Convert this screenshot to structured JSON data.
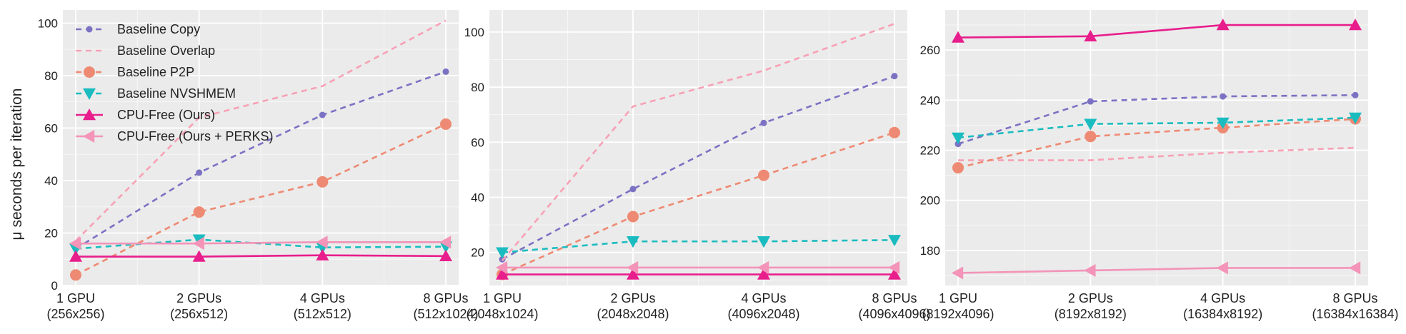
{
  "ylabel": "μ seconds per iteration",
  "series_styles": [
    {
      "name": "Baseline Copy",
      "color": "#7B72C4",
      "dash": "8,6",
      "marker": "dot"
    },
    {
      "name": "Baseline Overlap",
      "color": "#F7A1B5",
      "dash": "8,6",
      "marker": "none"
    },
    {
      "name": "Baseline P2P",
      "color": "#EE8A73",
      "dash": "8,6",
      "marker": "circle"
    },
    {
      "name": "Baseline NVSHMEM",
      "color": "#1BBCC0",
      "dash": "8,6",
      "marker": "tri-down"
    },
    {
      "name": "CPU-Free (Ours)",
      "color": "#E81E8C",
      "dash": "",
      "marker": "tri-up"
    },
    {
      "name": "CPU-Free (Ours + PERKS)",
      "color": "#F394B8",
      "dash": "",
      "marker": "tri-left"
    }
  ],
  "chart_data": [
    {
      "type": "line",
      "categories": [
        "1 GPU\n(256x256)",
        "2 GPUs\n(256x512)",
        "4 GPUs\n(512x512)",
        "8 GPUs\n(512x1024)"
      ],
      "ylim": [
        0,
        105
      ],
      "yticks": [
        0,
        20,
        40,
        60,
        80,
        100
      ],
      "legend": "upper-left",
      "grid": true,
      "series": [
        {
          "name": "Baseline Copy",
          "values": [
            14,
            43,
            65,
            81.5
          ]
        },
        {
          "name": "Baseline Overlap",
          "values": [
            17,
            64,
            76,
            101
          ]
        },
        {
          "name": "Baseline P2P",
          "values": [
            4,
            28,
            39.5,
            61.5
          ]
        },
        {
          "name": "Baseline NVSHMEM",
          "values": [
            14,
            17.5,
            14.5,
            14.8
          ]
        },
        {
          "name": "CPU-Free (Ours)",
          "values": [
            11,
            11,
            11.5,
            11.2
          ]
        },
        {
          "name": "CPU-Free (Ours + PERKS)",
          "values": [
            16,
            16,
            16.5,
            16.5
          ]
        }
      ]
    },
    {
      "type": "line",
      "categories": [
        "1 GPU\n(2048x1024)",
        "2 GPUs\n(2048x2048)",
        "4 GPUs\n(4096x2048)",
        "8 GPUs\n(4096x4096)"
      ],
      "ylim": [
        8,
        108
      ],
      "yticks": [
        20,
        40,
        60,
        80,
        100
      ],
      "grid": true,
      "series": [
        {
          "name": "Baseline Copy",
          "values": [
            17.5,
            43,
            67,
            84
          ]
        },
        {
          "name": "Baseline Overlap",
          "values": [
            17,
            73,
            86,
            103
          ]
        },
        {
          "name": "Baseline P2P",
          "values": [
            12,
            33,
            48,
            63.5
          ]
        },
        {
          "name": "Baseline NVSHMEM",
          "values": [
            20,
            24,
            24,
            24.5
          ]
        },
        {
          "name": "CPU-Free (Ours)",
          "values": [
            12,
            12,
            12,
            12
          ]
        },
        {
          "name": "CPU-Free (Ours + PERKS)",
          "values": [
            14.5,
            14.5,
            14.5,
            14.5
          ]
        }
      ]
    },
    {
      "type": "line",
      "categories": [
        "1 GPU\n(8192x4096)",
        "2 GPUs\n(8192x8192)",
        "4 GPUs\n(16384x8192)",
        "8 GPUs\n(16384x16384)"
      ],
      "ylim": [
        166,
        276
      ],
      "yticks": [
        180,
        200,
        220,
        240,
        260
      ],
      "grid": true,
      "series": [
        {
          "name": "Baseline Copy",
          "values": [
            222.5,
            239.5,
            241.5,
            242
          ]
        },
        {
          "name": "Baseline Overlap",
          "values": [
            216,
            216,
            219,
            221
          ]
        },
        {
          "name": "Baseline P2P",
          "values": [
            213,
            225.5,
            229,
            232.5
          ]
        },
        {
          "name": "Baseline NVSHMEM",
          "values": [
            225,
            230.5,
            231,
            233
          ]
        },
        {
          "name": "CPU-Free (Ours)",
          "values": [
            265,
            265.5,
            270,
            270
          ]
        },
        {
          "name": "CPU-Free (Ours + PERKS)",
          "values": [
            171,
            172,
            173,
            173
          ]
        }
      ]
    }
  ]
}
